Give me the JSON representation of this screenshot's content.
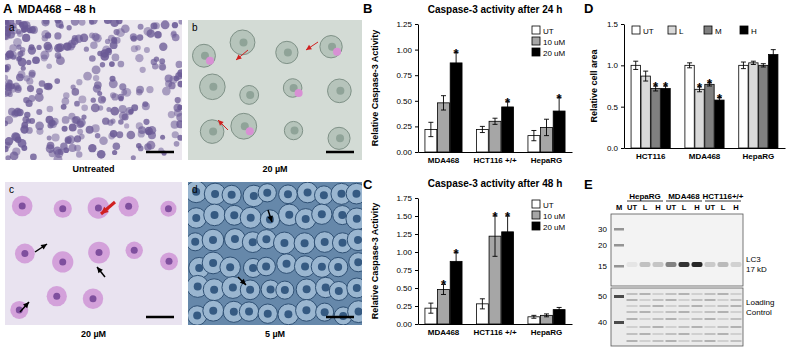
{
  "panel_labels": [
    "A",
    "B",
    "C",
    "D",
    "E"
  ],
  "panel_a": {
    "title": "MDA468 – 48 h",
    "images": [
      {
        "letter": "a",
        "caption": "Untreated"
      },
      {
        "letter": "b",
        "caption": "20 µM"
      },
      {
        "letter": "c",
        "caption": "20 µM"
      },
      {
        "letter": "d",
        "caption": "5 µM"
      }
    ]
  },
  "chart_data": [
    {
      "type": "bar",
      "title": "Caspase-3 activity after 24 h",
      "y_label": "Relative Caspase-3 Activity",
      "categories": [
        "MDA468",
        "HCT116 +/+",
        "HepaRG"
      ],
      "ylim": [
        0,
        1.25
      ],
      "yticks": [
        {
          "value": 0,
          "label": "0.00"
        },
        0.25,
        {
          "value": 0.5,
          "label": "0.50"
        },
        0.75,
        {
          "value": 1,
          "label": "1.00"
        },
        1.25
      ],
      "series": [
        {
          "name": "UT",
          "color": "#ffffff",
          "values": [
            0.22,
            0.22,
            0.16
          ],
          "errors": [
            0.07,
            0.03,
            0.05
          ]
        },
        {
          "name": "10 uM",
          "color": "#a6a6a6",
          "values": [
            0.48,
            0.3,
            0.24
          ],
          "errors": [
            0.07,
            0.03,
            0.08
          ]
        },
        {
          "name": "20 uM",
          "color": "#000000",
          "values": [
            0.87,
            0.44,
            0.4
          ],
          "errors": [
            0.1,
            0.05,
            0.13
          ]
        }
      ],
      "legend": "top-right",
      "annotations": [
        {
          "text": "*",
          "category": "MDA468",
          "series": "20 uM"
        },
        {
          "text": "*",
          "category": "HCT116 +/+",
          "series": "20 uM"
        },
        {
          "text": "*",
          "category": "HepaRG",
          "series": "20 uM"
        }
      ]
    },
    {
      "type": "bar",
      "title": "Caspase-3 activity after 48 h",
      "y_label": "Relative Caspase-3 Activity",
      "categories": [
        "MDA468",
        "HCT116 +/+",
        "HepaRG"
      ],
      "ylim": [
        0,
        1.75
      ],
      "yticks": [
        {
          "value": 0,
          "label": "0.00"
        },
        0.25,
        {
          "value": 0.5,
          "label": "0.50"
        },
        0.75,
        {
          "value": 1,
          "label": "1.00"
        },
        1.25,
        {
          "value": 1.5,
          "label": "1.50"
        },
        1.75
      ],
      "series": [
        {
          "name": "UT",
          "color": "#ffffff",
          "values": [
            0.22,
            0.28,
            0.1
          ],
          "errors": [
            0.07,
            0.07,
            0.02
          ]
        },
        {
          "name": "10 uM",
          "color": "#a6a6a6",
          "values": [
            0.48,
            1.22,
            0.12
          ],
          "errors": [
            0.07,
            0.28,
            0.02
          ]
        },
        {
          "name": "20 uM",
          "color": "#000000",
          "values": [
            0.87,
            1.28,
            0.2
          ],
          "errors": [
            0.12,
            0.22,
            0.03
          ]
        }
      ],
      "legend": "top-right",
      "annotations": [
        {
          "text": "*",
          "category": "MDA468",
          "series": "10 uM"
        },
        {
          "text": "*",
          "category": "MDA468",
          "series": "20 uM"
        },
        {
          "text": "*",
          "category": "HCT116 +/+",
          "series": "10 uM"
        },
        {
          "text": "*",
          "category": "HCT116 +/+",
          "series": "20 uM"
        }
      ]
    },
    {
      "type": "bar",
      "y_label": "Relative cell area",
      "categories": [
        "HCT116",
        "MDA468",
        "HepaRG"
      ],
      "ylim": [
        0,
        1.5
      ],
      "yticks": [
        {
          "value": 0,
          "label": "0.0"
        },
        0.5,
        {
          "value": 1,
          "label": "1.0"
        },
        1.5
      ],
      "series": [
        {
          "name": "UT",
          "color": "#ffffff",
          "values": [
            1.0,
            1.0,
            1.0
          ],
          "errors": [
            0.05,
            0.03,
            0.04
          ]
        },
        {
          "name": "L",
          "color": "#d9d9d9",
          "values": [
            0.87,
            0.71,
            1.03
          ],
          "errors": [
            0.06,
            0.03,
            0.02
          ]
        },
        {
          "name": "M",
          "color": "#808080",
          "values": [
            0.72,
            0.77,
            1.0
          ],
          "errors": [
            0.03,
            0.02,
            0.02
          ]
        },
        {
          "name": "H",
          "color": "#000000",
          "values": [
            0.72,
            0.58,
            1.13
          ],
          "errors": [
            0.03,
            0.03,
            0.06
          ]
        }
      ],
      "legend": "top",
      "annotations": [
        {
          "text": "*",
          "category": "HCT116",
          "series": "M"
        },
        {
          "text": "*",
          "category": "HCT116",
          "series": "H"
        },
        {
          "text": "*",
          "category": "MDA468",
          "series": "L"
        },
        {
          "text": "*",
          "category": "MDA468",
          "series": "M"
        },
        {
          "text": "*",
          "category": "MDA468",
          "series": "H"
        }
      ]
    }
  ],
  "blot": {
    "groups": [
      "HepaRG",
      "MDA468",
      "HCT116+/+"
    ],
    "lanes": [
      "M",
      "UT",
      "L",
      "H",
      "UT",
      "L",
      "H",
      "UT",
      "L",
      "H"
    ],
    "markers_top": [
      30,
      20,
      15
    ],
    "markers_bottom": [
      50,
      40
    ],
    "band_label": [
      "LC3",
      "17 kD"
    ],
    "control_label": [
      "Loading",
      "Control"
    ]
  }
}
